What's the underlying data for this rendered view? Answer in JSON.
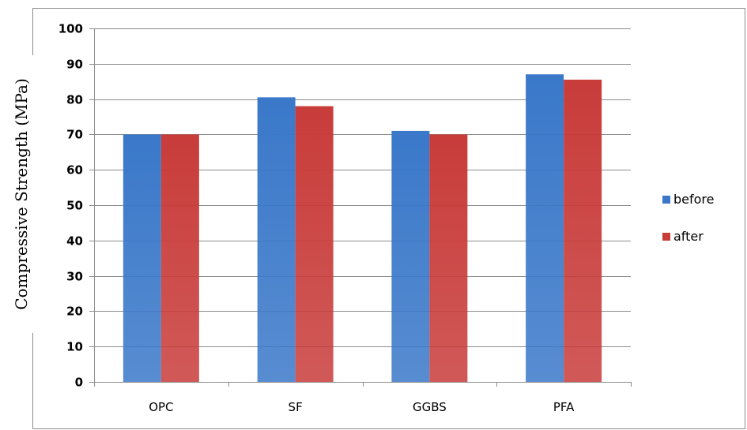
{
  "chart_data": {
    "type": "bar",
    "categories": [
      "OPC",
      "SF",
      "GGBS",
      "PFA"
    ],
    "series": [
      {
        "name": "before",
        "values": [
          70,
          80.5,
          71,
          87
        ],
        "color": "#3A78C9"
      },
      {
        "name": "after",
        "values": [
          70,
          78,
          70,
          85.5
        ],
        "color": "#C83C3A"
      }
    ],
    "ylabel": "Compressive Strength (MPa)",
    "xlabel": "",
    "ylim": [
      0,
      100
    ],
    "yticks": [
      0,
      10,
      20,
      30,
      40,
      50,
      60,
      70,
      80,
      90,
      100
    ],
    "grid": true,
    "legend_position": "right"
  }
}
